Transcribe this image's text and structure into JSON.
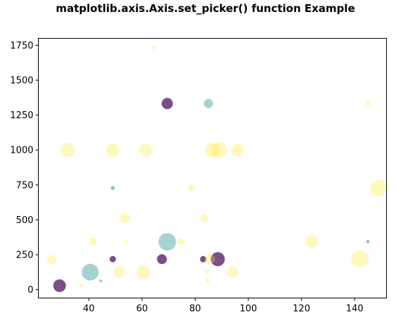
{
  "chart_data": {
    "type": "scatter",
    "title": "matplotlib.axis.Axis.set_picker() function Example",
    "xlabel": "",
    "ylabel": "",
    "xlim": [
      21,
      152
    ],
    "ylim": [
      -60,
      1800
    ],
    "xticks": [
      40,
      60,
      80,
      100,
      120,
      140
    ],
    "xtick_labels": [
      "40",
      "60",
      "80",
      "100",
      "120",
      "140"
    ],
    "yticks": [
      0,
      250,
      500,
      750,
      1000,
      1250,
      1500,
      1750
    ],
    "ytick_labels": [
      "0",
      "250",
      "500",
      "750",
      "1000",
      "1250",
      "1500",
      "1750"
    ],
    "grid": false,
    "legend": "none",
    "colors": {
      "purple": "#440154",
      "teal": "#21908d",
      "yellow": "#fde725"
    },
    "points": [
      {
        "x": 29,
        "y": 28,
        "size": 9,
        "color": "#440154",
        "alpha": 0.7
      },
      {
        "x": 40.5,
        "y": 125,
        "size": 12,
        "color": "#21908d",
        "alpha": 0.4
      },
      {
        "x": 69.5,
        "y": 343,
        "size": 12.5,
        "color": "#21908d",
        "alpha": 0.4
      },
      {
        "x": 49,
        "y": 218,
        "size": 4.5,
        "color": "#440154",
        "alpha": 0.7
      },
      {
        "x": 67.5,
        "y": 218,
        "size": 7,
        "color": "#440154",
        "alpha": 0.7
      },
      {
        "x": 83,
        "y": 218,
        "size": 4.5,
        "color": "#440154",
        "alpha": 0.7
      },
      {
        "x": 88.5,
        "y": 218,
        "size": 10,
        "color": "#440154",
        "alpha": 0.7
      },
      {
        "x": 69.5,
        "y": 1333,
        "size": 8,
        "color": "#440154",
        "alpha": 0.7
      },
      {
        "x": 85,
        "y": 1333,
        "size": 6.5,
        "color": "#21908d",
        "alpha": 0.4
      },
      {
        "x": 26,
        "y": 215,
        "size": 6.5,
        "color": "#fde725",
        "alpha": 0.3
      },
      {
        "x": 32,
        "y": 1000,
        "size": 10,
        "color": "#fde725",
        "alpha": 0.3
      },
      {
        "x": 49,
        "y": 1000,
        "size": 9.5,
        "color": "#fde725",
        "alpha": 0.3
      },
      {
        "x": 61.5,
        "y": 1000,
        "size": 9,
        "color": "#fde725",
        "alpha": 0.3
      },
      {
        "x": 86.5,
        "y": 1000,
        "size": 10,
        "color": "#fde725",
        "alpha": 0.3
      },
      {
        "x": 89,
        "y": 1000,
        "size": 11.5,
        "color": "#fde725",
        "alpha": 0.3
      },
      {
        "x": 96,
        "y": 1000,
        "size": 9,
        "color": "#fde725",
        "alpha": 0.3
      },
      {
        "x": 64.5,
        "y": 1735,
        "size": 3,
        "color": "#fde725",
        "alpha": 0.3
      },
      {
        "x": 145,
        "y": 1333,
        "size": 3.5,
        "color": "#fde725",
        "alpha": 0.3
      },
      {
        "x": 149,
        "y": 728,
        "size": 12,
        "color": "#fde725",
        "alpha": 0.3
      },
      {
        "x": 124,
        "y": 345,
        "size": 9,
        "color": "#fde725",
        "alpha": 0.3
      },
      {
        "x": 142,
        "y": 218,
        "size": 12.5,
        "color": "#fde725",
        "alpha": 0.3
      },
      {
        "x": 145,
        "y": 345,
        "size": 2.5,
        "color": "#21908d",
        "alpha": 0.5
      },
      {
        "x": 78.5,
        "y": 728,
        "size": 4.5,
        "color": "#fde725",
        "alpha": 0.3
      },
      {
        "x": 49,
        "y": 728,
        "size": 3,
        "color": "#21908d",
        "alpha": 0.5
      },
      {
        "x": 53.5,
        "y": 512,
        "size": 7,
        "color": "#fde725",
        "alpha": 0.3
      },
      {
        "x": 83.5,
        "y": 512,
        "size": 5.5,
        "color": "#fde725",
        "alpha": 0.3
      },
      {
        "x": 41.5,
        "y": 345,
        "size": 5.5,
        "color": "#fde725",
        "alpha": 0.3
      },
      {
        "x": 54,
        "y": 345,
        "size": 3,
        "color": "#fde725",
        "alpha": 0.3
      },
      {
        "x": 74.5,
        "y": 345,
        "size": 5,
        "color": "#fde725",
        "alpha": 0.3
      },
      {
        "x": 51.5,
        "y": 125,
        "size": 8,
        "color": "#fde725",
        "alpha": 0.3
      },
      {
        "x": 60.5,
        "y": 125,
        "size": 9.5,
        "color": "#fde725",
        "alpha": 0.3
      },
      {
        "x": 85.5,
        "y": 218,
        "size": 7.5,
        "color": "#fde725",
        "alpha": 0.3
      },
      {
        "x": 94,
        "y": 125,
        "size": 8,
        "color": "#fde725",
        "alpha": 0.3
      },
      {
        "x": 84.5,
        "y": 125,
        "size": 3,
        "color": "#fde725",
        "alpha": 0.3
      },
      {
        "x": 84.5,
        "y": 62,
        "size": 3,
        "color": "#fde725",
        "alpha": 0.35
      },
      {
        "x": 37,
        "y": 28,
        "size": 2.5,
        "color": "#fde725",
        "alpha": 0.4
      },
      {
        "x": 44.5,
        "y": 62,
        "size": 2,
        "color": "#21908d",
        "alpha": 0.5
      }
    ]
  }
}
